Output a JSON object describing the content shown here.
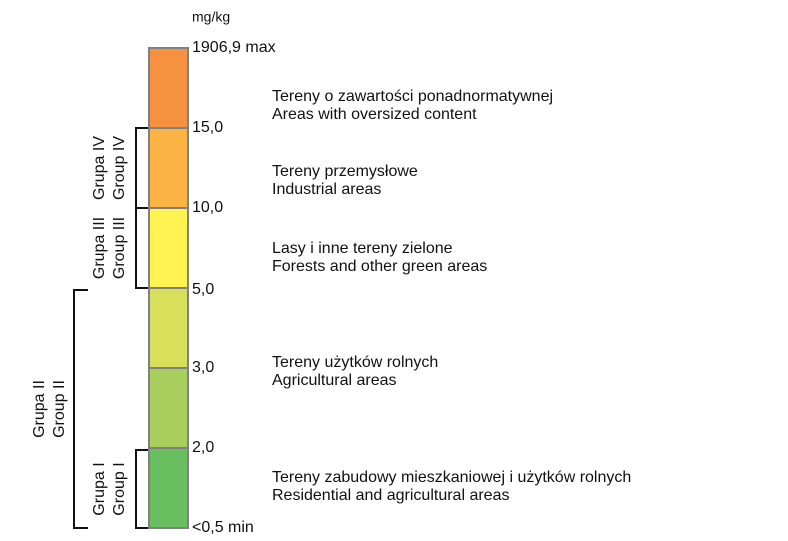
{
  "legend": {
    "unit": "mg/kg",
    "boundaries": [
      "1906,9 max",
      "15,0",
      "10,0",
      "5,0",
      "3,0",
      "2,0",
      "<0,5 min"
    ],
    "classes": [
      {
        "color": "#f5913f",
        "lines": [
          "Tereny o zawartości ponadnormatywnej",
          "Areas with oversized content"
        ]
      },
      {
        "color": "#fbb343",
        "lines": [
          "Tereny przemysłowe",
          "Industrial areas"
        ]
      },
      {
        "color": "#fff352",
        "lines": [
          "Lasy i inne tereny zielone",
          "Forests and other green areas"
        ]
      },
      {
        "color": "#d8e05b"
      },
      {
        "color": "#a9cf5f",
        "lines": [
          "Tereny użytków rolnych",
          "Agricultural areas"
        ]
      },
      {
        "color": "#69be60",
        "lines": [
          "Tereny zabudowy mieszkaniowej i użytków rolnych",
          "Residential and agricultural areas"
        ]
      }
    ],
    "groups": [
      {
        "lines": [
          "Grupa IV",
          "Group IV"
        ]
      },
      {
        "lines": [
          "Grupa III",
          "Group III"
        ]
      },
      {
        "lines": [
          "Grupa II",
          "Group II"
        ]
      },
      {
        "lines": [
          "Grupa I",
          "Group I"
        ]
      }
    ]
  }
}
